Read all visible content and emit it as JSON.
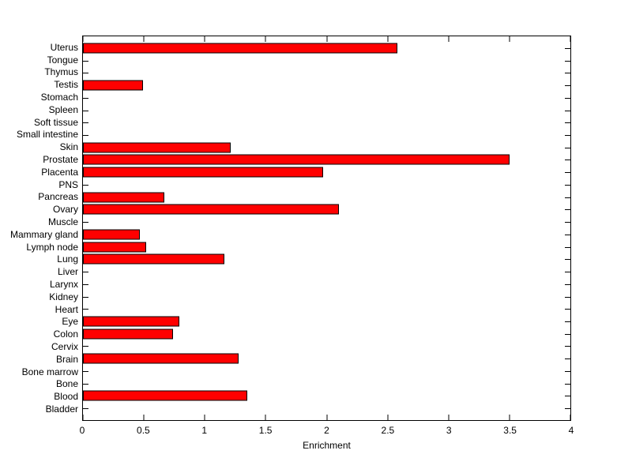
{
  "chart_data": {
    "type": "bar",
    "orientation": "horizontal",
    "title": "",
    "xlabel": "Enrichment",
    "ylabel": "",
    "xlim": [
      0,
      4
    ],
    "xticks": [
      0,
      0.5,
      1,
      1.5,
      2,
      2.5,
      3,
      3.5,
      4
    ],
    "xtick_labels": [
      "0",
      "0.5",
      "1",
      "1.5",
      "2",
      "2.5",
      "3",
      "3.5",
      "4"
    ],
    "grid": false,
    "legend": null,
    "bar_color": "#ff0000",
    "bar_edge_color": "#000000",
    "categories": [
      "Uterus",
      "Tongue",
      "Thymus",
      "Testis",
      "Stomach",
      "Spleen",
      "Soft tissue",
      "Small intestine",
      "Skin",
      "Prostate",
      "Placenta",
      "PNS",
      "Pancreas",
      "Ovary",
      "Muscle",
      "Mammary gland",
      "Lymph node",
      "Lung",
      "Liver",
      "Larynx",
      "Kidney",
      "Heart",
      "Eye",
      "Colon",
      "Cervix",
      "Brain",
      "Bone marrow",
      "Bone",
      "Blood",
      "Bladder"
    ],
    "values": [
      2.58,
      0,
      0,
      0.49,
      0,
      0,
      0,
      0,
      1.21,
      3.5,
      1.97,
      0,
      0.67,
      2.1,
      0,
      0.47,
      0.52,
      1.16,
      0,
      0,
      0,
      0,
      0.79,
      0.74,
      0,
      1.28,
      0,
      0,
      1.35,
      0
    ]
  }
}
